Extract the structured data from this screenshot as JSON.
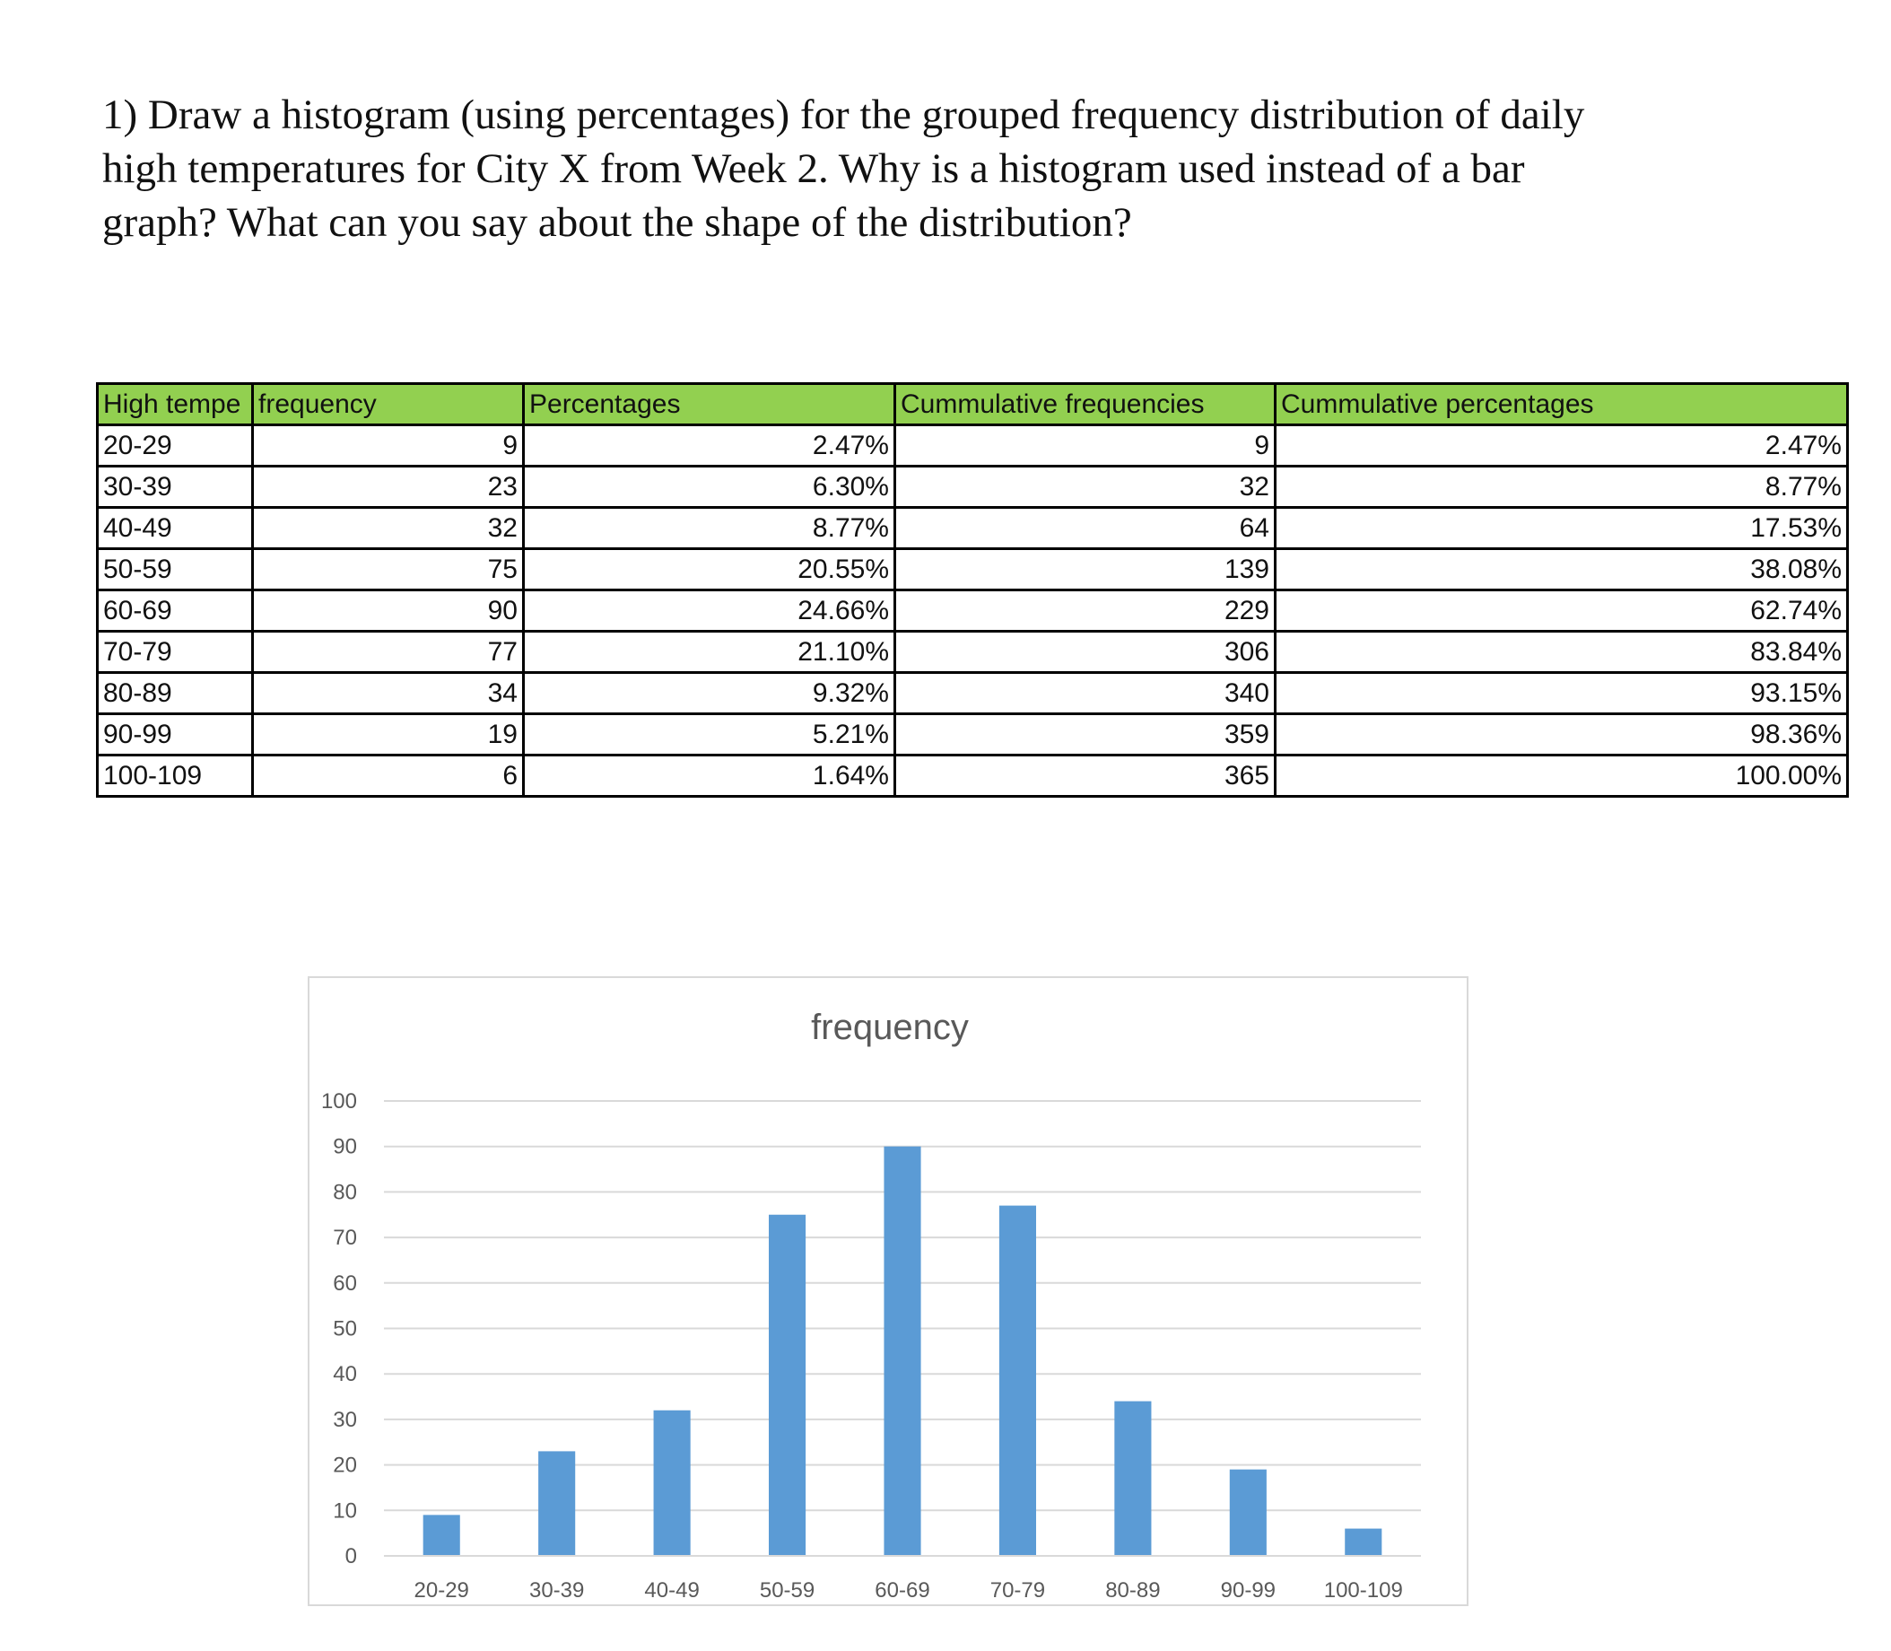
{
  "question": {
    "lines": [
      "1) Draw a histogram (using percentages) for the grouped frequency distribution of daily",
      "high temperatures for City X from Week 2. Why is a histogram used instead of a bar",
      "graph? What can you say about the shape of the distribution?"
    ]
  },
  "table": {
    "header_color": "#92d050",
    "headers": [
      "High tempe",
      "frequency",
      "Percentages",
      "Cummulative frequencies",
      "Cummulative percentages"
    ],
    "rows": [
      [
        "20-29",
        "9",
        "2.47%",
        "9",
        "2.47%"
      ],
      [
        "30-39",
        "23",
        "6.30%",
        "32",
        "8.77%"
      ],
      [
        "40-49",
        "32",
        "8.77%",
        "64",
        "17.53%"
      ],
      [
        "50-59",
        "75",
        "20.55%",
        "139",
        "38.08%"
      ],
      [
        "60-69",
        "90",
        "24.66%",
        "229",
        "62.74%"
      ],
      [
        "70-79",
        "77",
        "21.10%",
        "306",
        "83.84%"
      ],
      [
        "80-89",
        "34",
        "9.32%",
        "340",
        "93.15%"
      ],
      [
        "90-99",
        "19",
        "5.21%",
        "359",
        "98.36%"
      ],
      [
        "100-109",
        "6",
        "1.64%",
        "365",
        "100.00%"
      ]
    ]
  },
  "chart_data": {
    "type": "bar",
    "title": "frequency",
    "categories": [
      "20-29",
      "30-39",
      "40-49",
      "50-59",
      "60-69",
      "70-79",
      "80-89",
      "90-99",
      "100-109"
    ],
    "values": [
      9,
      23,
      32,
      75,
      90,
      77,
      34,
      19,
      6
    ],
    "ylim": [
      0,
      100
    ],
    "yticks": [
      0,
      10,
      20,
      30,
      40,
      50,
      60,
      70,
      80,
      90,
      100
    ],
    "grid": true,
    "legend": "none",
    "bar_color": "#5b9bd5",
    "xlabel": "",
    "ylabel": ""
  }
}
